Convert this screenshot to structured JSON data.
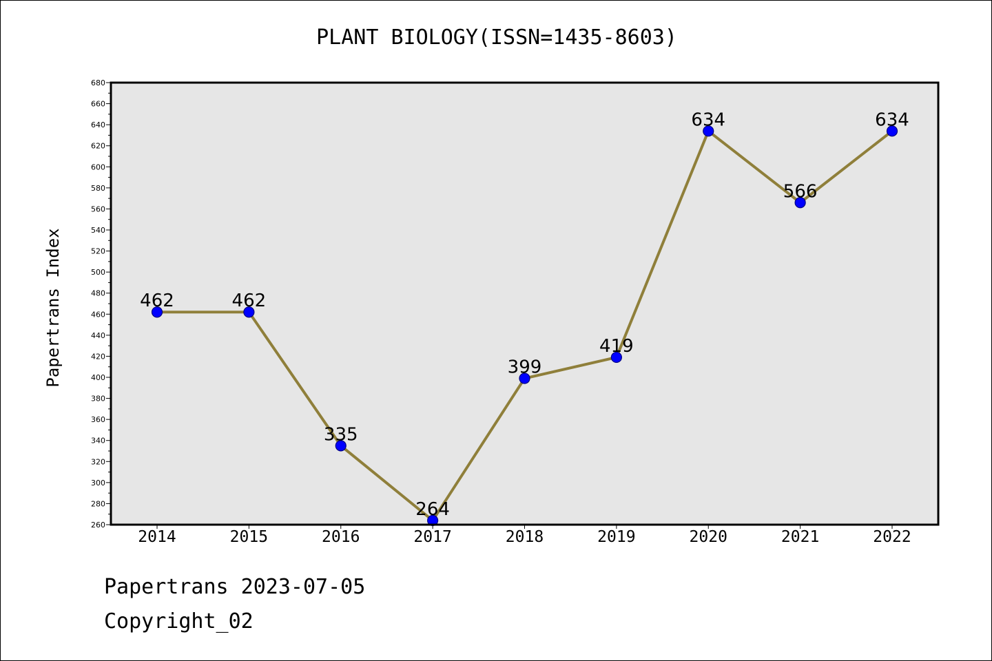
{
  "chart_data": {
    "type": "line",
    "title": "PLANT BIOLOGY(ISSN=1435-8603)",
    "xlabel": "",
    "ylabel": "Papertrans Index",
    "categories": [
      "2014",
      "2015",
      "2016",
      "2017",
      "2018",
      "2019",
      "2020",
      "2021",
      "2022"
    ],
    "values": [
      462,
      462,
      335,
      264,
      399,
      419,
      634,
      566,
      634
    ],
    "ylim": [
      260,
      680
    ],
    "ytick_step": 20,
    "grid": false,
    "legend": "none",
    "colors": {
      "line": "#8f7f3a",
      "marker": "#0000ff",
      "marker_edge": "#000080",
      "plot_background": "#e6e6e6"
    }
  },
  "footer": {
    "line1": "Papertrans 2023-07-05",
    "line2": "Copyright_02"
  }
}
